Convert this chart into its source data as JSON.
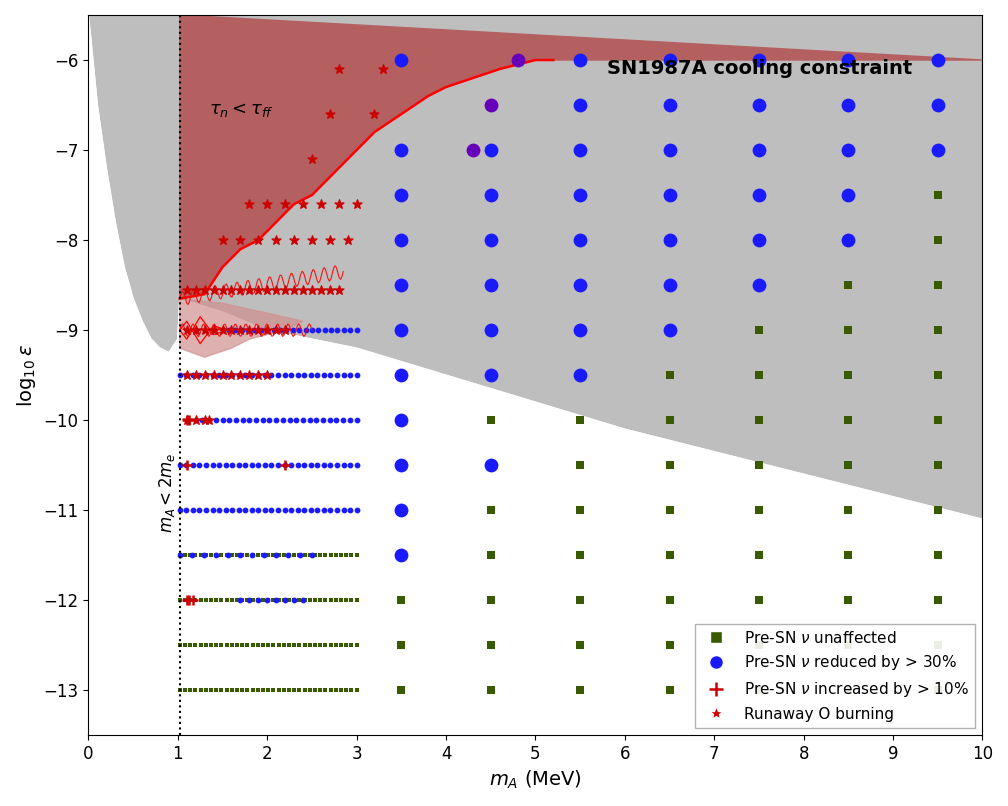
{
  "xlabel": "$m_A$ (MeV)",
  "ylabel": "$\\log_{10}\\varepsilon$",
  "xlim": [
    0,
    10
  ],
  "ylim": [
    -13.5,
    -5.5
  ],
  "yticks": [
    -13,
    -12,
    -11,
    -10,
    -9,
    -8,
    -7,
    -6
  ],
  "xticks": [
    0,
    1,
    2,
    3,
    4,
    5,
    6,
    7,
    8,
    9,
    10
  ],
  "dotted_line_x": 1.022,
  "label_tau": "$\\tau_n < \\tau_{ff}$",
  "label_ma": "$m_A < 2m_e$",
  "constraint_label": "SN1987A cooling constraint",
  "green_color": "#3a5a00",
  "blue_color": "#1a1aff",
  "red_color": "#cc0000",
  "purple_color": "#6600bb",
  "bg_gray_color": "#bebebe",
  "red_region_color": "#b06060",
  "pink_inner_color": "#d09090",
  "legend_labels": [
    "Pre-SN $\\nu$ unaffected",
    "Pre-SN $\\nu$ reduced by > 30%",
    "Pre-SN $\\nu$ increased by > 10%",
    "Runaway O burning"
  ]
}
